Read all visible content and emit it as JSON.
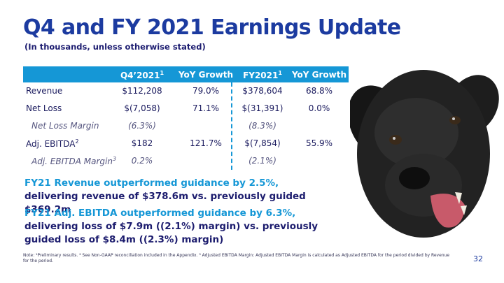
{
  "header": {
    "title": "Q4 and FY 2021 Earnings Update",
    "subtitle": "(In thousands, unless otherwise stated)"
  },
  "table": {
    "columns": [
      "",
      "Q4’2021",
      "YoY Growth",
      "FY2021",
      "YoY Growth"
    ],
    "rows": [
      {
        "label": "Revenue",
        "q4": "$112,208",
        "q4_yoy": "79.0%",
        "fy": "$378,604",
        "fy_yoy": "68.8%"
      },
      {
        "label": "Net Loss",
        "q4": "$(7,058)",
        "q4_yoy": "71.1%",
        "fy": "$(31,391)",
        "fy_yoy": "0.0%"
      },
      {
        "label": "Net Loss Margin",
        "q4": "(6.3%)",
        "q4_yoy": "",
        "fy": "(8.3%)",
        "fy_yoy": ""
      },
      {
        "label": "Adj. EBITDA",
        "q4": "$182",
        "q4_yoy": "121.7%",
        "fy": "$(7,854)",
        "fy_yoy": "55.9%"
      },
      {
        "label": "Adj. EBITDA Margin",
        "q4": "0.2%",
        "q4_yoy": "",
        "fy": "(2.1%)",
        "fy_yoy": ""
      }
    ]
  },
  "bullets": [
    {
      "highlight": "FY21 Revenue outperformed guidance by 2.5%,",
      "text": " delivering revenue of $378.6m vs. previously guided $369.2m"
    },
    {
      "highlight": "FY21 Adj. EBITDA outperformed guidance by 6.3%,",
      "text": " delivering loss of $7.9m ((2.1%) margin) vs. previously guided loss of $8.4m ((2.3%) margin)"
    }
  ],
  "footnote": "Note: ¹Preliminary results. ² See Non-GAAP reconciliation included in the Appendix. ³ Adjusted EBITDA Margin: Adjusted EBITDA Margin is calculated as Adjusted EBITDA for the period divided by Revenue for the period.",
  "page_number": "32",
  "image": {
    "icon": "black-labrador-dog-photo"
  },
  "colors": {
    "title": "#1c3ba0",
    "accent": "#1597d6",
    "body": "#1c1c6e"
  }
}
